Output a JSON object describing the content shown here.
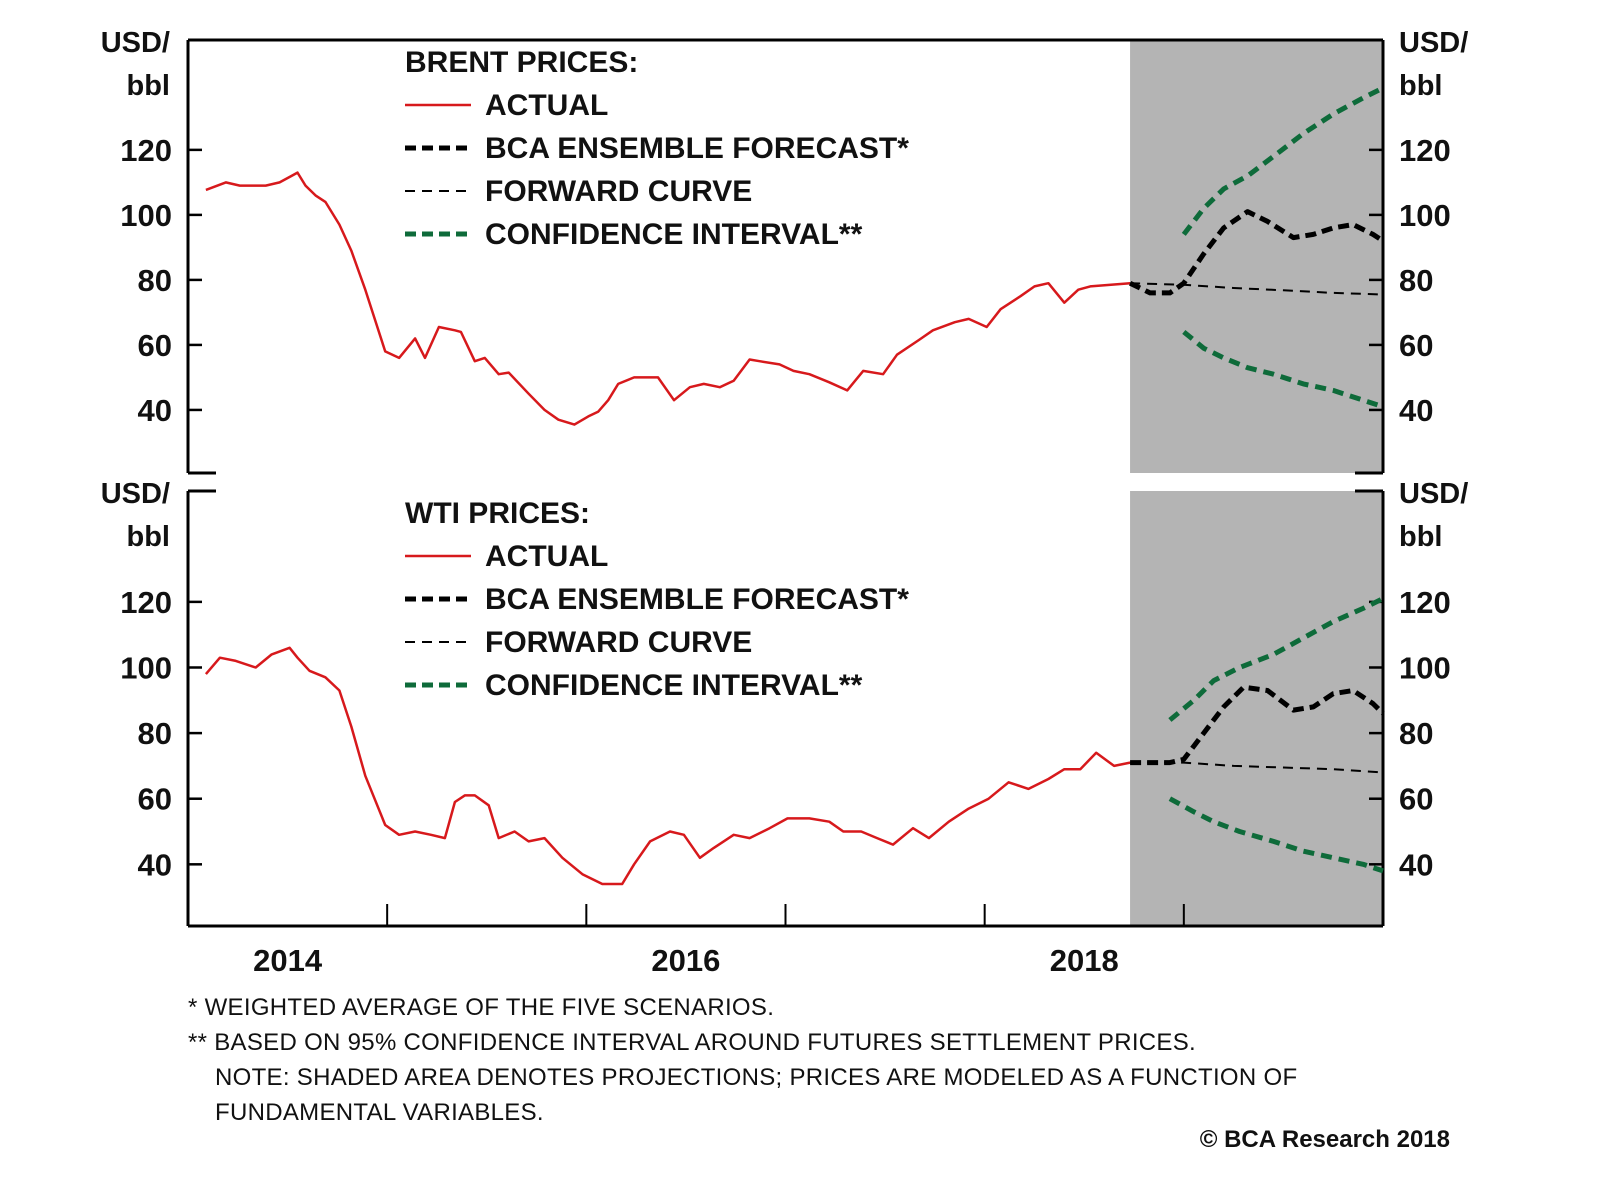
{
  "chart_data": [
    {
      "type": "line",
      "title": "BRENT PRICES:",
      "ylabel": "USD/ bbl",
      "ylabel_right": "USD/ bbl",
      "ylim": [
        20.6,
        153.8
      ],
      "xlim": [
        2014.0,
        2020.0
      ],
      "yticks": [
        40,
        60,
        80,
        100,
        120
      ],
      "projection_start": 2018.73,
      "legend": [
        "ACTUAL",
        "BCA ENSEMBLE FORECAST*",
        "FORWARD CURVE",
        "CONFIDENCE INTERVAL**"
      ],
      "legend_placement": "top-center",
      "series": [
        {
          "name": "ACTUAL",
          "color": "#d7191c",
          "x": [
            2014.09,
            2014.19,
            2014.26,
            2014.39,
            2014.46,
            2014.52,
            2014.55,
            2014.59,
            2014.64,
            2014.69,
            2014.76,
            2014.82,
            2014.89,
            2014.99,
            2015.06,
            2015.14,
            2015.19,
            2015.26,
            2015.34,
            2015.37,
            2015.44,
            2015.49,
            2015.56,
            2015.61,
            2015.71,
            2015.79,
            2015.86,
            2015.94,
            2016.01,
            2016.06,
            2016.11,
            2016.16,
            2016.24,
            2016.36,
            2016.44,
            2016.52,
            2016.59,
            2016.67,
            2016.74,
            2016.82,
            2016.87,
            2016.97,
            2017.04,
            2017.12,
            2017.22,
            2017.31,
            2017.39,
            2017.49,
            2017.56,
            2017.67,
            2017.74,
            2017.85,
            2017.92,
            2018.01,
            2018.08,
            2018.18,
            2018.25,
            2018.32,
            2018.4,
            2018.47,
            2018.53,
            2018.73
          ],
          "values": [
            107.7,
            110,
            109,
            109,
            110,
            112,
            113,
            109,
            106,
            104,
            97,
            89,
            77,
            58,
            56,
            62,
            56,
            65.5,
            64.5,
            64,
            55,
            56,
            51,
            51.5,
            45,
            40,
            37,
            35.5,
            38,
            39.5,
            43,
            48,
            50,
            50,
            43,
            47,
            48,
            47,
            49,
            55.5,
            55,
            54,
            52,
            51,
            48.5,
            46,
            52,
            51,
            57,
            61.5,
            64.5,
            67,
            68,
            65.5,
            71,
            75,
            78,
            79,
            73,
            77,
            78,
            79
          ]
        },
        {
          "name": "BCA ENSEMBLE FORECAST*",
          "color": "#000000",
          "x": [
            2018.73,
            2018.83,
            2018.93,
            2019.0,
            2019.1,
            2019.2,
            2019.32,
            2019.42,
            2019.55,
            2019.65,
            2019.75,
            2019.85,
            2019.95,
            2020.0
          ],
          "values": [
            79,
            76,
            76,
            79,
            88,
            96,
            101,
            98,
            93,
            94,
            96,
            97,
            94,
            92
          ]
        },
        {
          "name": "FORWARD CURVE",
          "color": "#000000",
          "x": [
            2018.73,
            2019.0,
            2019.25,
            2019.5,
            2019.75,
            2020.0
          ],
          "values": [
            79,
            78.5,
            77.5,
            76.8,
            76,
            75.5
          ]
        },
        {
          "name": "CONFIDENCE INTERVAL** (upper)",
          "color": "#0e6b3a",
          "x": [
            2019.0,
            2019.1,
            2019.2,
            2019.32,
            2019.45,
            2019.6,
            2019.75,
            2019.9,
            2020.0
          ],
          "values": [
            94,
            102,
            108,
            112,
            118,
            125,
            131,
            136,
            139
          ]
        },
        {
          "name": "CONFIDENCE INTERVAL** (lower)",
          "color": "#0e6b3a",
          "x": [
            2019.0,
            2019.1,
            2019.2,
            2019.32,
            2019.45,
            2019.6,
            2019.75,
            2019.9,
            2020.0
          ],
          "values": [
            64,
            59,
            56,
            53,
            51,
            48,
            46,
            43,
            41
          ]
        }
      ]
    },
    {
      "type": "line",
      "title": "WTI PRICES:",
      "ylabel": "USD/ bbl",
      "ylabel_right": "USD/ bbl",
      "ylim": [
        21.2,
        153.8
      ],
      "xlim": [
        2014.0,
        2020.0
      ],
      "yticks": [
        40,
        60,
        80,
        100,
        120
      ],
      "projection_start": 2018.73,
      "legend": [
        "ACTUAL",
        "BCA ENSEMBLE FORECAST*",
        "FORWARD CURVE",
        "CONFIDENCE INTERVAL**"
      ],
      "legend_placement": "top-center",
      "xticklabels": [
        "2014",
        "2016",
        "2018"
      ],
      "series": [
        {
          "name": "ACTUAL",
          "color": "#d7191c",
          "x": [
            2014.09,
            2014.16,
            2014.24,
            2014.34,
            2014.42,
            2014.51,
            2014.55,
            2014.61,
            2014.69,
            2014.76,
            2014.82,
            2014.89,
            2014.99,
            2015.06,
            2015.14,
            2015.22,
            2015.29,
            2015.34,
            2015.39,
            2015.44,
            2015.51,
            2015.56,
            2015.64,
            2015.71,
            2015.79,
            2015.88,
            2015.98,
            2016.08,
            2016.18,
            2016.24,
            2016.32,
            2016.42,
            2016.49,
            2016.57,
            2016.64,
            2016.74,
            2016.82,
            2016.92,
            2017.01,
            2017.12,
            2017.22,
            2017.29,
            2017.38,
            2017.46,
            2017.54,
            2017.64,
            2017.72,
            2017.82,
            2017.92,
            2018.02,
            2018.12,
            2018.22,
            2018.32,
            2018.4,
            2018.48,
            2018.56,
            2018.65,
            2018.73
          ],
          "values": [
            98,
            103,
            102,
            100,
            104,
            106,
            103,
            99,
            97,
            93,
            82,
            67,
            52,
            49,
            50,
            49,
            48,
            59,
            61,
            61,
            58,
            48,
            50,
            47,
            48,
            42,
            37,
            34,
            34,
            40,
            47,
            50,
            49,
            42,
            45,
            49,
            48,
            51,
            54,
            54,
            53,
            50,
            50,
            48,
            46,
            51,
            48,
            53,
            57,
            60,
            65,
            63,
            66,
            69,
            69,
            74,
            70,
            71
          ]
        },
        {
          "name": "BCA ENSEMBLE FORECAST*",
          "color": "#000000",
          "x": [
            2018.73,
            2018.83,
            2018.93,
            2019.0,
            2019.1,
            2019.2,
            2019.3,
            2019.42,
            2019.55,
            2019.65,
            2019.75,
            2019.85,
            2019.95,
            2020.0
          ],
          "values": [
            71,
            71,
            71,
            72,
            80,
            88,
            94,
            93,
            87,
            88,
            92,
            93,
            89,
            86
          ]
        },
        {
          "name": "FORWARD CURVE",
          "color": "#000000",
          "x": [
            2018.73,
            2019.0,
            2019.25,
            2019.5,
            2019.75,
            2020.0
          ],
          "values": [
            71,
            71,
            70,
            69.5,
            69,
            68
          ]
        },
        {
          "name": "CONFIDENCE INTERVAL** (upper)",
          "color": "#0e6b3a",
          "x": [
            2018.93,
            2019.05,
            2019.15,
            2019.28,
            2019.45,
            2019.6,
            2019.75,
            2019.9,
            2020.0
          ],
          "values": [
            84,
            90,
            96,
            100,
            104,
            109,
            114,
            118,
            121
          ]
        },
        {
          "name": "CONFIDENCE INTERVAL** (lower)",
          "color": "#0e6b3a",
          "x": [
            2018.93,
            2019.05,
            2019.15,
            2019.28,
            2019.45,
            2019.6,
            2019.75,
            2019.9,
            2020.0
          ],
          "values": [
            60,
            56,
            53,
            50,
            47,
            44,
            42,
            40,
            38
          ]
        }
      ]
    }
  ],
  "notes": {
    "note1": "*  WEIGHTED AVERAGE OF THE FIVE SCENARIOS.",
    "note2": "** BASED ON 95% CONFIDENCE INTERVAL AROUND FUTURES SETTLEMENT PRICES.",
    "note3": "NOTE: SHADED AREA DENOTES PROJECTIONS; PRICES ARE MODELED AS A FUNCTION OF",
    "note4": "FUNDAMENTAL VARIABLES."
  },
  "copyright": "© BCA Research 2018",
  "colors": {
    "actual": "#d7191c",
    "forecast": "#000000",
    "forward": "#000000",
    "confidence": "#0e6b3a",
    "projection_shade": "#b4b4b4"
  }
}
